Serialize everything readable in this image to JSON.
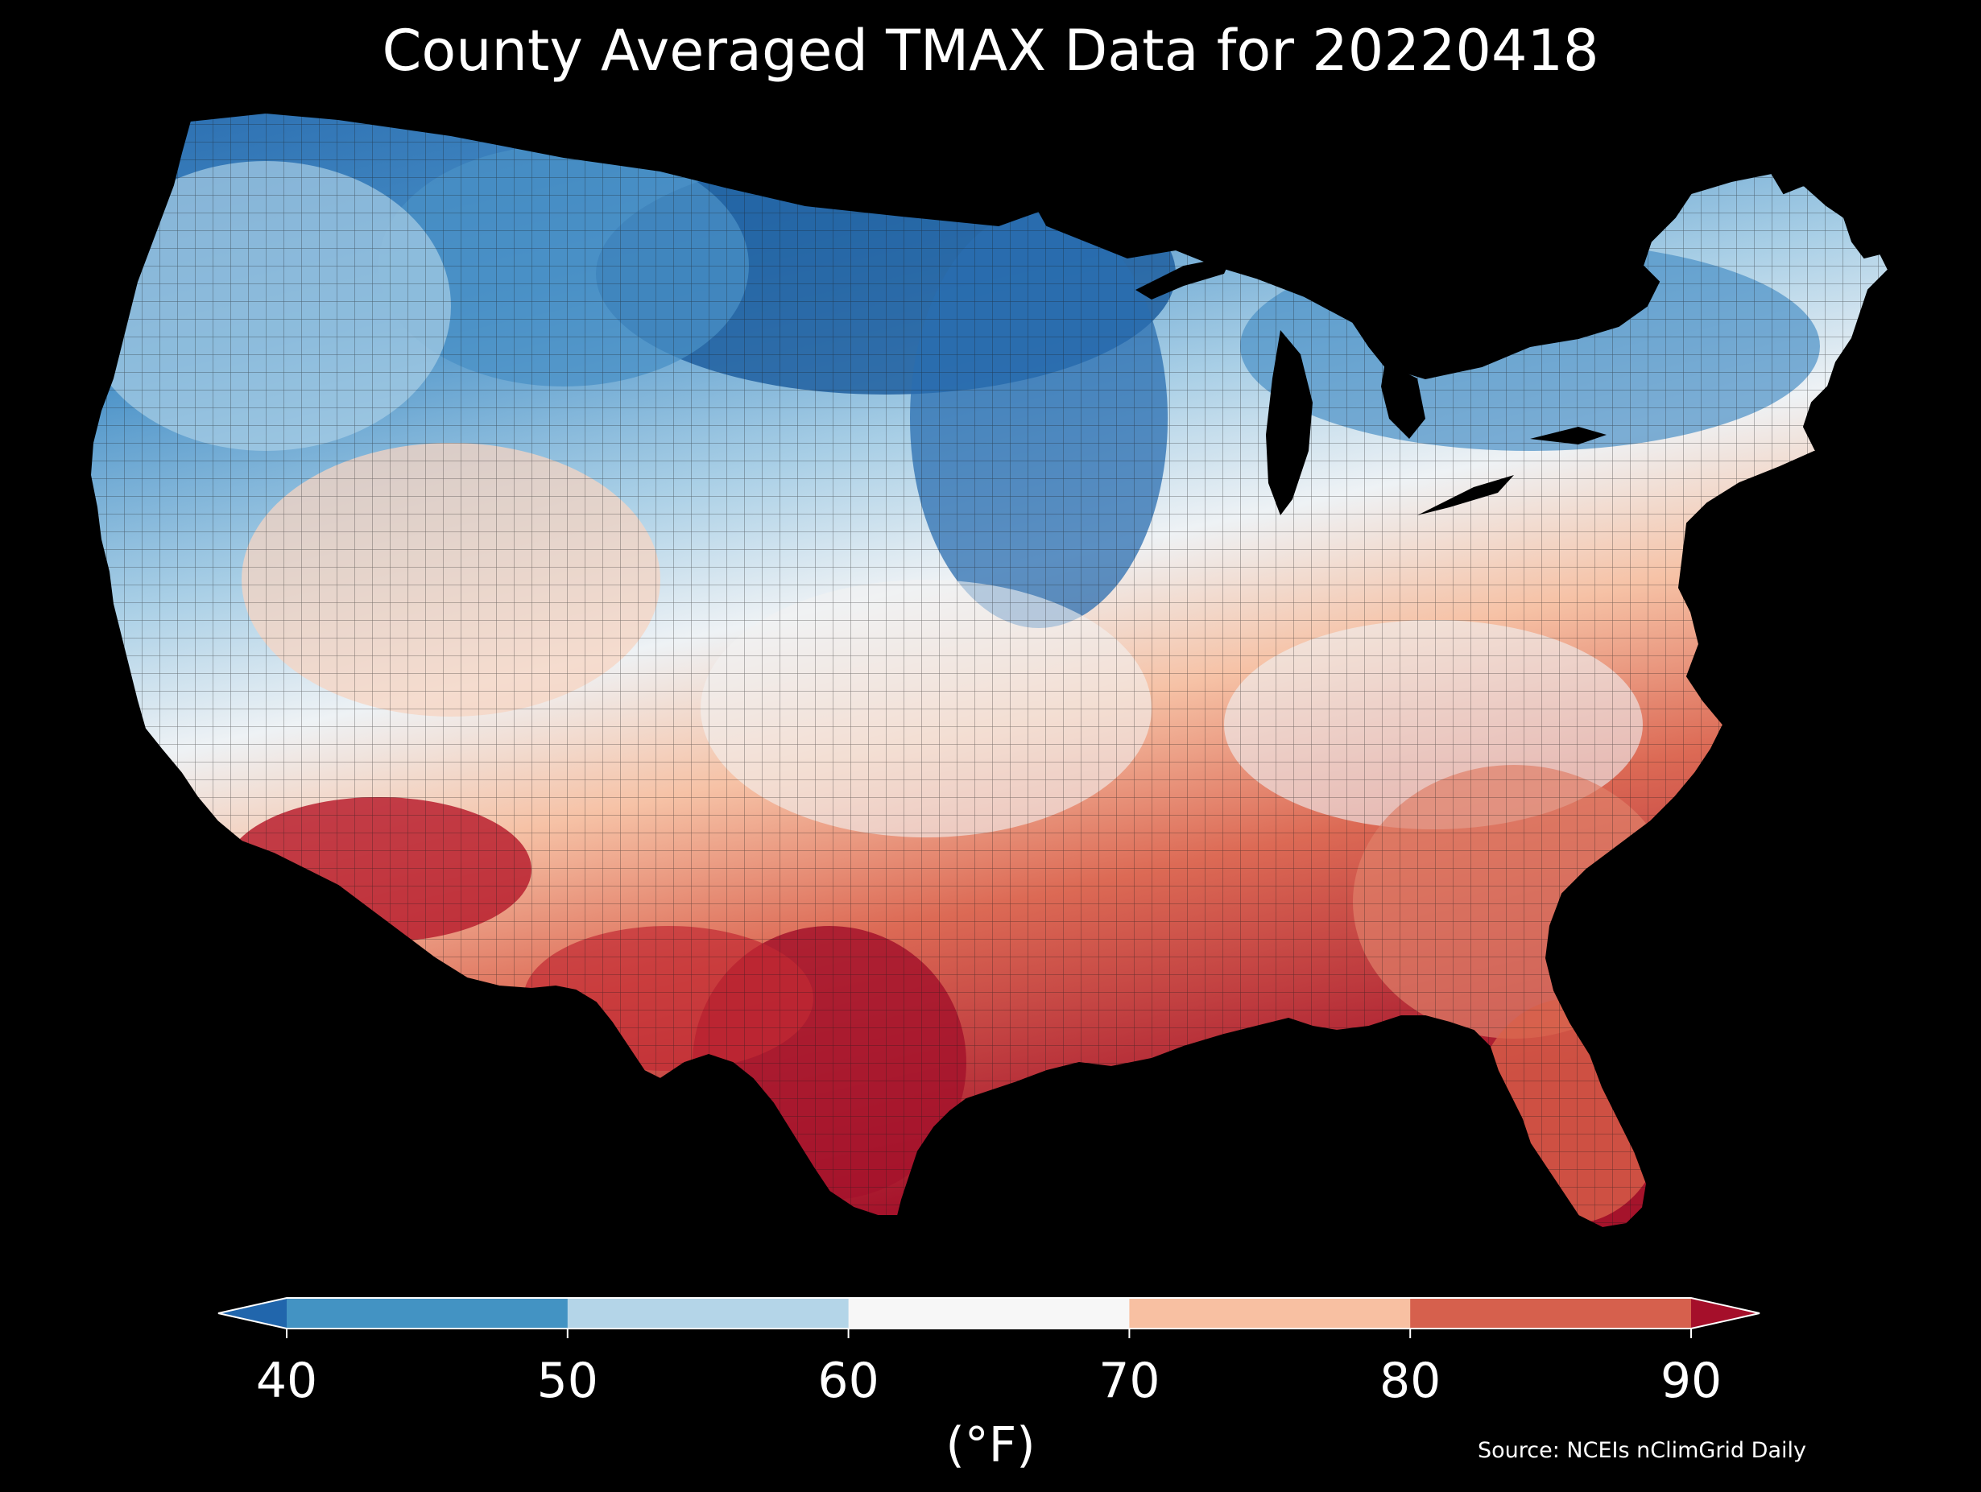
{
  "title": "County Averaged TMAX Data for 20220418",
  "map": {
    "region": "Contiguous United States",
    "variable": "TMAX",
    "unit_label": "(°F)",
    "source": "Source: NCEIs nClimGrid Daily",
    "background_color": "#000000",
    "boundary_color": "#000000",
    "regional_pattern": [
      {
        "region": "northern-plains",
        "range": "below 40",
        "color": "#1f5fa0"
      },
      {
        "region": "upper-midwest-montana",
        "range": "40-50",
        "color": "#4a90c6"
      },
      {
        "region": "pacific-northwest-great-basin-north",
        "range": "50-60",
        "color": "#a9cfe6"
      },
      {
        "region": "great-basin-central-plains",
        "range": "60-70",
        "color": "#f2f2f2"
      },
      {
        "region": "california-southwest-southeast",
        "range": "70-80",
        "color": "#f7b79a"
      },
      {
        "region": "arizona-texas-florida",
        "range": "80-90",
        "color": "#d8604a"
      },
      {
        "region": "southern-arizona-south-texas",
        "range": "above 90",
        "color": "#a5132b"
      }
    ]
  },
  "colorbar": {
    "ticks": [
      "40",
      "50",
      "60",
      "70",
      "80",
      "90"
    ],
    "tick_values": [
      40,
      50,
      60,
      70,
      80,
      90
    ],
    "bins": [
      {
        "range": "below 40",
        "color": "#2166ac"
      },
      {
        "range": "40-50",
        "color": "#4393c3"
      },
      {
        "range": "50-60",
        "color": "#b4d5e8"
      },
      {
        "range": "60-70",
        "color": "#f7f7f7"
      },
      {
        "range": "70-80",
        "color": "#f8c0a2"
      },
      {
        "range": "80-90",
        "color": "#d6604d"
      },
      {
        "range": "above 90",
        "color": "#a50f2a"
      }
    ],
    "extend": "both"
  }
}
